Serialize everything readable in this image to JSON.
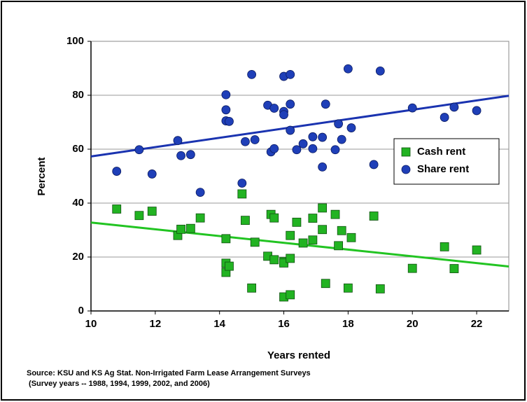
{
  "chart_data": {
    "type": "scatter",
    "xlabel": "Years rented",
    "ylabel": "Percent",
    "xlim": [
      10,
      23
    ],
    "xticks": [
      10,
      12,
      14,
      16,
      18,
      20,
      22
    ],
    "ylim": [
      0,
      100
    ],
    "yticks": [
      0,
      20,
      40,
      60,
      80,
      100
    ],
    "grid": true,
    "legend": "right",
    "series": [
      {
        "name": "Cash rent",
        "color": "#22b322",
        "marker": "square",
        "x": [
          10.8,
          11.5,
          11.9,
          12.7,
          12.8,
          13.1,
          13.4,
          14.2,
          14.2,
          14.2,
          14.3,
          14.7,
          14.8,
          15,
          15.1,
          15.5,
          15.6,
          15.7,
          15.7,
          16,
          16,
          16,
          16.2,
          16.2,
          16.2,
          16.4,
          16.6,
          16.9,
          16.9,
          17.2,
          17.2,
          17.3,
          17.6,
          17.7,
          17.8,
          18,
          18.1,
          18.8,
          19,
          20,
          21,
          21.3,
          22
        ],
        "values": [
          37.8,
          35.4,
          37,
          28,
          30.3,
          30.6,
          34.5,
          26.8,
          17.7,
          14.3,
          16.6,
          43.4,
          33.6,
          8.5,
          25.5,
          20.3,
          35.8,
          34.5,
          19,
          18.3,
          17.8,
          5.2,
          19.5,
          28,
          6,
          32.9,
          25.2,
          26.3,
          34.4,
          38.2,
          30.2,
          10.2,
          35.8,
          24.2,
          29.8,
          8.5,
          27.2,
          35.2,
          8.2,
          15.8,
          23.8,
          15.7,
          22.6
        ]
      },
      {
        "name": "Share rent",
        "color": "#1f3fb8",
        "marker": "circle",
        "x": [
          10.8,
          11.5,
          11.9,
          12.7,
          12.8,
          13.1,
          13.4,
          14.2,
          14.2,
          14.2,
          14.3,
          14.7,
          14.8,
          15,
          15.1,
          15.5,
          15.6,
          15.7,
          15.7,
          16,
          16,
          16,
          16.2,
          16.2,
          16.2,
          16.4,
          16.6,
          16.9,
          16.9,
          17.2,
          17.2,
          17.3,
          17.6,
          17.7,
          17.8,
          18,
          18.1,
          18.8,
          19,
          20,
          21,
          21.3,
          22
        ],
        "values": [
          51.8,
          59.8,
          50.8,
          63.2,
          57.6,
          58,
          44,
          80.2,
          74.6,
          70.5,
          70.3,
          47.4,
          62.8,
          87.7,
          63.5,
          76.3,
          59,
          75.2,
          60.2,
          87,
          74,
          72.8,
          87.7,
          76.7,
          67,
          59.8,
          62,
          64.6,
          60.2,
          53.4,
          64.4,
          76.7,
          59.8,
          69.4,
          63.6,
          89.8,
          67.9,
          54.3,
          89,
          75.3,
          71.8,
          75.6,
          74.3
        ]
      }
    ],
    "trendlines": [
      {
        "color": "#22c422",
        "x": [
          10,
          23
        ],
        "values": [
          32.8,
          16.5
        ]
      },
      {
        "color": "#1a33b0",
        "x": [
          10,
          23
        ],
        "values": [
          57.3,
          79.8
        ]
      }
    ],
    "notes": [
      "Source: KSU and KS Ag Stat. Non-Irrigated Farm Lease Arrangement Surveys",
      " (Survey years -- 1988, 1994, 1999, 2002, and 2006)"
    ]
  }
}
